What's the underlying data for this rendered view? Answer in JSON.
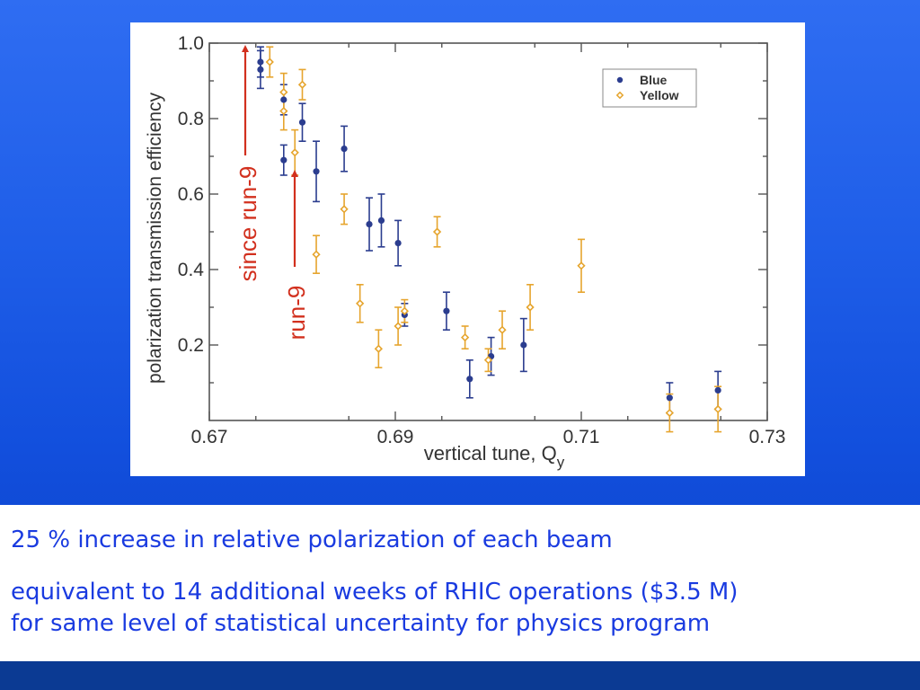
{
  "chart_data": {
    "type": "scatter",
    "xlabel": "vertical tune, Q",
    "xlabel_sub": "y",
    "ylabel": "polarization transmission efficiency",
    "xlim": [
      0.67,
      0.73
    ],
    "ylim": [
      0.0,
      1.0
    ],
    "x_ticks": [
      0.67,
      0.69,
      0.71,
      0.73
    ],
    "x_tick_labels": [
      "0.67",
      "0.69",
      "0.71",
      "0.73"
    ],
    "y_ticks": [
      0.2,
      0.4,
      0.6,
      0.8,
      1.0
    ],
    "y_tick_labels": [
      "0.2",
      "0.4",
      "0.6",
      "0.8",
      "1.0"
    ],
    "grid": false,
    "legend_position": "top-right",
    "series": [
      {
        "name": "Blue",
        "color": "#2b3d8f",
        "marker": "circle",
        "points": [
          {
            "x": 0.6755,
            "y": 0.95,
            "err": 0.04
          },
          {
            "x": 0.6755,
            "y": 0.93,
            "err": 0.05
          },
          {
            "x": 0.678,
            "y": 0.85,
            "err": 0.04
          },
          {
            "x": 0.678,
            "y": 0.69,
            "err": 0.04
          },
          {
            "x": 0.68,
            "y": 0.79,
            "err": 0.05
          },
          {
            "x": 0.6815,
            "y": 0.66,
            "err": 0.08
          },
          {
            "x": 0.6845,
            "y": 0.72,
            "err": 0.06
          },
          {
            "x": 0.6872,
            "y": 0.52,
            "err": 0.07
          },
          {
            "x": 0.6885,
            "y": 0.53,
            "err": 0.07
          },
          {
            "x": 0.6903,
            "y": 0.47,
            "err": 0.06
          },
          {
            "x": 0.691,
            "y": 0.28,
            "err": 0.03
          },
          {
            "x": 0.6955,
            "y": 0.29,
            "err": 0.05
          },
          {
            "x": 0.698,
            "y": 0.11,
            "err": 0.05
          },
          {
            "x": 0.7003,
            "y": 0.17,
            "err": 0.05
          },
          {
            "x": 0.7038,
            "y": 0.2,
            "err": 0.07
          },
          {
            "x": 0.7195,
            "y": 0.06,
            "err": 0.04
          },
          {
            "x": 0.7247,
            "y": 0.08,
            "err": 0.05
          }
        ]
      },
      {
        "name": "Yellow",
        "color": "#e6a52e",
        "marker": "diamond",
        "points": [
          {
            "x": 0.6765,
            "y": 0.95,
            "err": 0.04
          },
          {
            "x": 0.678,
            "y": 0.87,
            "err": 0.05
          },
          {
            "x": 0.678,
            "y": 0.82,
            "err": 0.05
          },
          {
            "x": 0.6792,
            "y": 0.71,
            "err": 0.06
          },
          {
            "x": 0.68,
            "y": 0.89,
            "err": 0.04
          },
          {
            "x": 0.6815,
            "y": 0.44,
            "err": 0.05
          },
          {
            "x": 0.6845,
            "y": 0.56,
            "err": 0.04
          },
          {
            "x": 0.6862,
            "y": 0.31,
            "err": 0.05
          },
          {
            "x": 0.6882,
            "y": 0.19,
            "err": 0.05
          },
          {
            "x": 0.6903,
            "y": 0.25,
            "err": 0.05
          },
          {
            "x": 0.691,
            "y": 0.29,
            "err": 0.03
          },
          {
            "x": 0.6945,
            "y": 0.5,
            "err": 0.04
          },
          {
            "x": 0.6975,
            "y": 0.22,
            "err": 0.03
          },
          {
            "x": 0.7,
            "y": 0.16,
            "err": 0.03
          },
          {
            "x": 0.7015,
            "y": 0.24,
            "err": 0.05
          },
          {
            "x": 0.7045,
            "y": 0.3,
            "err": 0.06
          },
          {
            "x": 0.71,
            "y": 0.41,
            "err": 0.07
          },
          {
            "x": 0.7195,
            "y": 0.02,
            "err": 0.05
          },
          {
            "x": 0.7247,
            "y": 0.03,
            "err": 0.06
          }
        ]
      }
    ],
    "annotations": [
      {
        "text": "since run-9",
        "color": "#d2301e"
      },
      {
        "text": "run-9",
        "color": "#d2301e"
      }
    ]
  },
  "bullets": {
    "line1": "25 % increase in relative polarization of each beam",
    "line2": "equivalent to 14 additional weeks of RHIC operations ($3.5 M)\nfor same level of statistical uncertainty for physics program"
  }
}
